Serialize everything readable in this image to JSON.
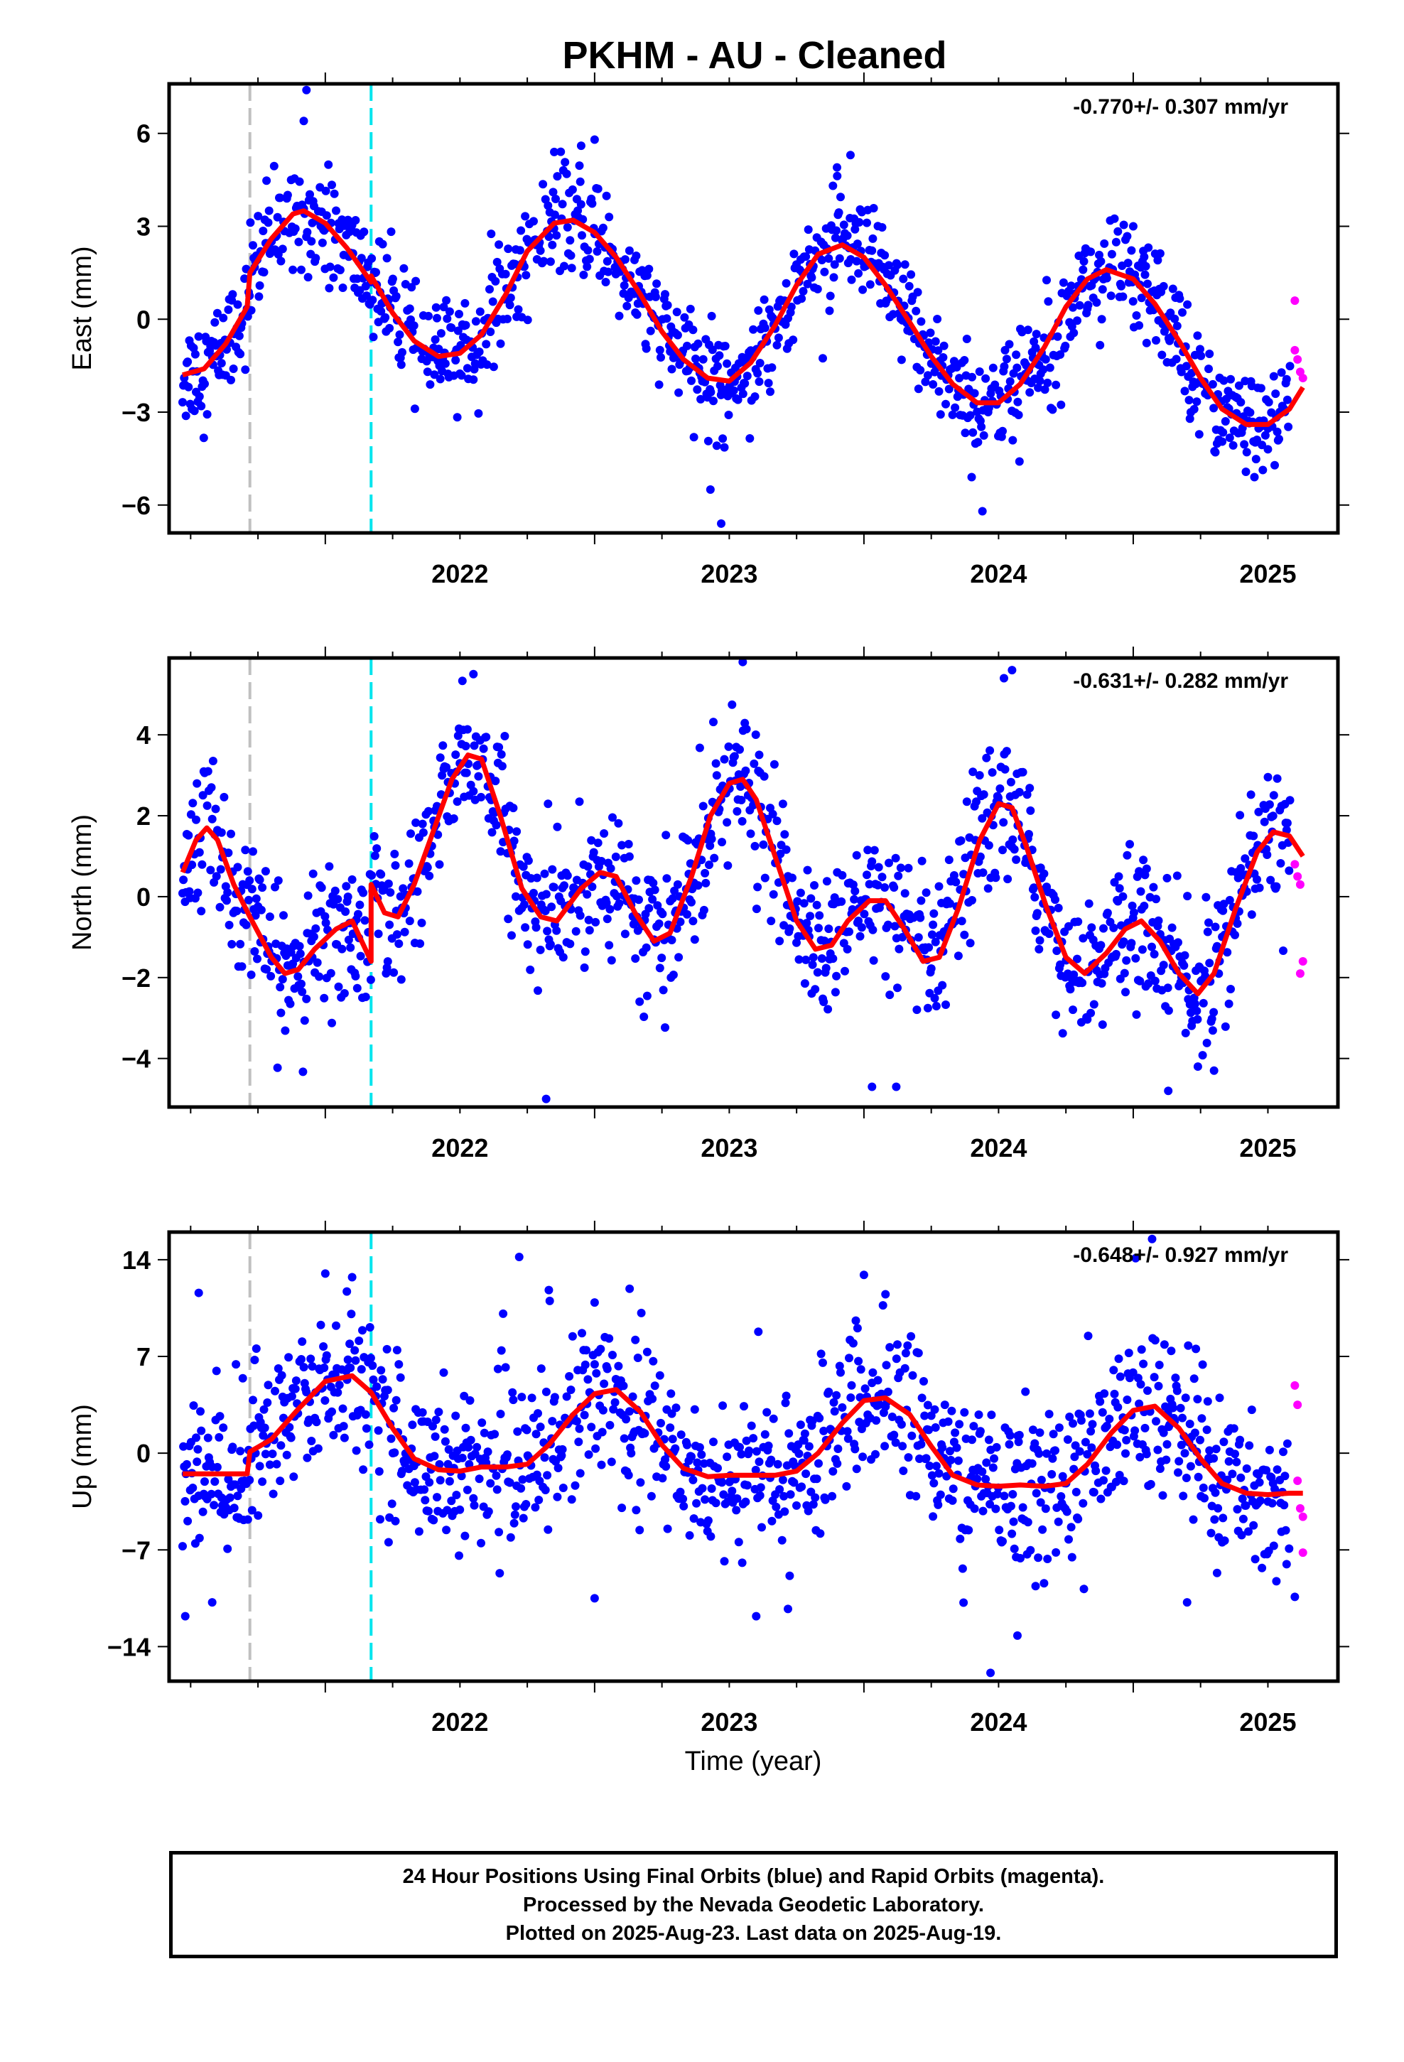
{
  "title": "PKHM  - AU - Cleaned",
  "xlabel": "Time (year)",
  "x_tick_labels": [
    "2022",
    "2023",
    "2024",
    "2025"
  ],
  "footer": {
    "line1": "24 Hour Positions Using Final Orbits (blue) and Rapid Orbits (magenta).",
    "line2": "Processed by the Nevada Geodetic Laboratory.",
    "line3": "Plotted on 2025-Aug-23. Last data on 2025-Aug-19."
  },
  "colors": {
    "final_orbits": "#0000ff",
    "rapid_orbits": "#ff00ff",
    "model_fit": "#ff0000",
    "gray_marker": "#c0c0c0",
    "cyan_marker": "#00e5ee"
  },
  "chart_data": [
    {
      "type": "scatter",
      "component": "east",
      "ylabel": "East (mm)",
      "rate": "-0.770+/- 0.307 mm/yr",
      "xlim": [
        2021.42,
        2025.76
      ],
      "ylim": [
        -6.9,
        7.6
      ],
      "yticks": [
        -6,
        -3,
        0,
        3,
        6
      ],
      "grid": false,
      "vlines": [
        {
          "x": 2021.72,
          "color": "gray",
          "style": "dashed"
        },
        {
          "x": 2022.17,
          "color": "cyan",
          "style": "dashed"
        }
      ],
      "fit": [
        [
          2021.47,
          -1.8
        ],
        [
          2021.55,
          -1.6
        ],
        [
          2021.63,
          -0.8
        ],
        [
          2021.71,
          0.4
        ],
        [
          2021.72,
          1.5
        ],
        [
          2021.8,
          2.6
        ],
        [
          2021.88,
          3.4
        ],
        [
          2021.92,
          3.5
        ],
        [
          2022.0,
          3.1
        ],
        [
          2022.08,
          2.3
        ],
        [
          2022.17,
          1.2
        ],
        [
          2022.17,
          1.4
        ],
        [
          2022.25,
          0.2
        ],
        [
          2022.33,
          -0.7
        ],
        [
          2022.42,
          -1.2
        ],
        [
          2022.5,
          -1.1
        ],
        [
          2022.58,
          -0.5
        ],
        [
          2022.67,
          0.8
        ],
        [
          2022.75,
          2.2
        ],
        [
          2022.85,
          3.1
        ],
        [
          2022.92,
          3.2
        ],
        [
          2023.0,
          2.8
        ],
        [
          2023.08,
          2.0
        ],
        [
          2023.17,
          0.8
        ],
        [
          2023.25,
          -0.4
        ],
        [
          2023.33,
          -1.3
        ],
        [
          2023.42,
          -1.9
        ],
        [
          2023.5,
          -2.0
        ],
        [
          2023.58,
          -1.4
        ],
        [
          2023.67,
          -0.2
        ],
        [
          2023.75,
          1.1
        ],
        [
          2023.83,
          2.1
        ],
        [
          2023.92,
          2.4
        ],
        [
          2024.0,
          2.0
        ],
        [
          2024.08,
          1.1
        ],
        [
          2024.17,
          -0.1
        ],
        [
          2024.25,
          -1.2
        ],
        [
          2024.33,
          -2.1
        ],
        [
          2024.42,
          -2.7
        ],
        [
          2024.5,
          -2.7
        ],
        [
          2024.58,
          -2.1
        ],
        [
          2024.67,
          -0.9
        ],
        [
          2024.75,
          0.4
        ],
        [
          2024.83,
          1.3
        ],
        [
          2024.9,
          1.6
        ],
        [
          2025.0,
          1.3
        ],
        [
          2025.08,
          0.5
        ],
        [
          2025.17,
          -0.7
        ],
        [
          2025.25,
          -1.9
        ],
        [
          2025.33,
          -2.9
        ],
        [
          2025.42,
          -3.4
        ],
        [
          2025.5,
          -3.4
        ],
        [
          2025.58,
          -2.9
        ],
        [
          2025.63,
          -2.2
        ]
      ],
      "rapid_points": [
        [
          2025.6,
          0.6
        ],
        [
          2025.6,
          -1.0
        ],
        [
          2025.61,
          -1.3
        ],
        [
          2025.62,
          -1.7
        ],
        [
          2025.63,
          -1.9
        ]
      ],
      "scatter_sd": 0.85,
      "highlight_points": [
        [
          2021.93,
          7.4
        ],
        [
          2021.92,
          6.4
        ],
        [
          2022.85,
          5.4
        ],
        [
          2022.95,
          5.6
        ],
        [
          2023.0,
          5.8
        ],
        [
          2023.47,
          -6.6
        ],
        [
          2023.43,
          -5.5
        ],
        [
          2023.9,
          4.9
        ],
        [
          2023.95,
          5.3
        ],
        [
          2024.44,
          -6.2
        ],
        [
          2024.4,
          -5.1
        ],
        [
          2025.0,
          3.0
        ],
        [
          2025.45,
          -5.1
        ],
        [
          2025.5,
          -4.2
        ]
      ]
    },
    {
      "type": "scatter",
      "component": "north",
      "ylabel": "North (mm)",
      "rate": "-0.631+/- 0.282 mm/yr",
      "xlim": [
        2021.42,
        2025.76
      ],
      "ylim": [
        -5.2,
        5.9
      ],
      "yticks": [
        -4,
        -2,
        0,
        2,
        4
      ],
      "grid": false,
      "vlines": [
        {
          "x": 2021.72,
          "color": "gray",
          "style": "dashed"
        },
        {
          "x": 2022.17,
          "color": "cyan",
          "style": "dashed"
        }
      ],
      "fit": [
        [
          2021.47,
          0.6
        ],
        [
          2021.52,
          1.4
        ],
        [
          2021.56,
          1.7
        ],
        [
          2021.6,
          1.4
        ],
        [
          2021.66,
          0.3
        ],
        [
          2021.72,
          -0.5
        ],
        [
          2021.8,
          -1.5
        ],
        [
          2021.85,
          -1.9
        ],
        [
          2021.9,
          -1.8
        ],
        [
          2021.96,
          -1.3
        ],
        [
          2022.04,
          -0.8
        ],
        [
          2022.1,
          -0.6
        ],
        [
          2022.17,
          -1.6
        ],
        [
          2022.17,
          0.3
        ],
        [
          2022.22,
          -0.4
        ],
        [
          2022.27,
          -0.5
        ],
        [
          2022.33,
          0.3
        ],
        [
          2022.4,
          1.6
        ],
        [
          2022.47,
          2.9
        ],
        [
          2022.53,
          3.5
        ],
        [
          2022.58,
          3.4
        ],
        [
          2022.65,
          2.0
        ],
        [
          2022.73,
          0.2
        ],
        [
          2022.8,
          -0.5
        ],
        [
          2022.86,
          -0.6
        ],
        [
          2022.95,
          0.2
        ],
        [
          2023.02,
          0.6
        ],
        [
          2023.08,
          0.5
        ],
        [
          2023.15,
          -0.4
        ],
        [
          2023.22,
          -1.1
        ],
        [
          2023.28,
          -0.9
        ],
        [
          2023.36,
          0.5
        ],
        [
          2023.43,
          2.0
        ],
        [
          2023.5,
          2.8
        ],
        [
          2023.55,
          2.9
        ],
        [
          2023.6,
          2.4
        ],
        [
          2023.68,
          0.8
        ],
        [
          2023.75,
          -0.6
        ],
        [
          2023.82,
          -1.3
        ],
        [
          2023.88,
          -1.2
        ],
        [
          2023.94,
          -0.6
        ],
        [
          2024.02,
          -0.1
        ],
        [
          2024.08,
          -0.1
        ],
        [
          2024.15,
          -0.8
        ],
        [
          2024.22,
          -1.6
        ],
        [
          2024.28,
          -1.5
        ],
        [
          2024.35,
          -0.3
        ],
        [
          2024.43,
          1.4
        ],
        [
          2024.5,
          2.3
        ],
        [
          2024.55,
          2.2
        ],
        [
          2024.6,
          1.3
        ],
        [
          2024.68,
          -0.3
        ],
        [
          2024.75,
          -1.5
        ],
        [
          2024.82,
          -1.9
        ],
        [
          2024.9,
          -1.4
        ],
        [
          2024.97,
          -0.8
        ],
        [
          2025.03,
          -0.6
        ],
        [
          2025.1,
          -1.1
        ],
        [
          2025.17,
          -1.9
        ],
        [
          2025.24,
          -2.4
        ],
        [
          2025.3,
          -1.9
        ],
        [
          2025.38,
          -0.3
        ],
        [
          2025.46,
          1.1
        ],
        [
          2025.52,
          1.6
        ],
        [
          2025.58,
          1.5
        ],
        [
          2025.63,
          1.0
        ]
      ],
      "rapid_points": [
        [
          2025.6,
          0.8
        ],
        [
          2025.61,
          0.5
        ],
        [
          2025.62,
          0.3
        ],
        [
          2025.62,
          -1.9
        ],
        [
          2025.63,
          -1.6
        ]
      ],
      "scatter_sd": 0.85,
      "highlight_points": [
        [
          2022.55,
          5.5
        ],
        [
          2022.82,
          -5.0
        ],
        [
          2023.55,
          5.8
        ],
        [
          2024.03,
          -4.7
        ],
        [
          2024.12,
          -4.7
        ],
        [
          2024.52,
          5.4
        ],
        [
          2024.55,
          5.6
        ],
        [
          2025.13,
          -4.8
        ],
        [
          2025.3,
          -4.3
        ],
        [
          2025.24,
          -4.2
        ]
      ]
    },
    {
      "type": "scatter",
      "component": "up",
      "ylabel": "Up (mm)",
      "rate": "-0.648+/- 0.927 mm/yr",
      "xlim": [
        2021.42,
        2025.76
      ],
      "ylim": [
        -16.5,
        16.0
      ],
      "yticks": [
        -14,
        -7,
        0,
        7,
        14
      ],
      "grid": false,
      "vlines": [
        {
          "x": 2021.72,
          "color": "gray",
          "style": "dashed"
        },
        {
          "x": 2022.17,
          "color": "cyan",
          "style": "dashed"
        }
      ],
      "fit": [
        [
          2021.47,
          -1.5
        ],
        [
          2021.55,
          -1.5
        ],
        [
          2021.63,
          -1.5
        ],
        [
          2021.71,
          -1.5
        ],
        [
          2021.72,
          0.1
        ],
        [
          2021.8,
          1.0
        ],
        [
          2021.9,
          3.2
        ],
        [
          2022.0,
          5.2
        ],
        [
          2022.1,
          5.6
        ],
        [
          2022.17,
          4.4
        ],
        [
          2022.25,
          1.8
        ],
        [
          2022.33,
          -0.4
        ],
        [
          2022.42,
          -1.2
        ],
        [
          2022.5,
          -1.3
        ],
        [
          2022.58,
          -1.0
        ],
        [
          2022.67,
          -1.0
        ],
        [
          2022.75,
          -0.8
        ],
        [
          2022.83,
          0.6
        ],
        [
          2022.92,
          2.8
        ],
        [
          2023.0,
          4.3
        ],
        [
          2023.08,
          4.6
        ],
        [
          2023.17,
          3.0
        ],
        [
          2023.25,
          0.6
        ],
        [
          2023.33,
          -1.1
        ],
        [
          2023.42,
          -1.7
        ],
        [
          2023.5,
          -1.6
        ],
        [
          2023.58,
          -1.6
        ],
        [
          2023.67,
          -1.6
        ],
        [
          2023.75,
          -1.3
        ],
        [
          2023.83,
          0.0
        ],
        [
          2023.92,
          2.2
        ],
        [
          2024.0,
          3.8
        ],
        [
          2024.08,
          4.0
        ],
        [
          2024.17,
          2.8
        ],
        [
          2024.25,
          0.5
        ],
        [
          2024.33,
          -1.6
        ],
        [
          2024.42,
          -2.3
        ],
        [
          2024.5,
          -2.4
        ],
        [
          2024.58,
          -2.3
        ],
        [
          2024.67,
          -2.4
        ],
        [
          2024.75,
          -2.2
        ],
        [
          2024.83,
          -0.8
        ],
        [
          2024.92,
          1.5
        ],
        [
          2025.0,
          3.1
        ],
        [
          2025.08,
          3.4
        ],
        [
          2025.17,
          1.8
        ],
        [
          2025.25,
          -0.4
        ],
        [
          2025.33,
          -2.2
        ],
        [
          2025.42,
          -2.9
        ],
        [
          2025.5,
          -3.0
        ],
        [
          2025.58,
          -2.9
        ],
        [
          2025.63,
          -2.9
        ]
      ],
      "rapid_points": [
        [
          2025.6,
          4.9
        ],
        [
          2025.61,
          3.5
        ],
        [
          2025.61,
          -2.0
        ],
        [
          2025.62,
          -4.0
        ],
        [
          2025.63,
          -4.6
        ],
        [
          2025.63,
          -7.2
        ]
      ],
      "scatter_sd": 2.9,
      "highlight_points": [
        [
          2021.48,
          -11.8
        ],
        [
          2021.53,
          11.6
        ],
        [
          2021.58,
          -10.8
        ],
        [
          2022.0,
          13.0
        ],
        [
          2022.08,
          11.7
        ],
        [
          2022.72,
          14.2
        ],
        [
          2022.83,
          11.8
        ],
        [
          2023.0,
          10.9
        ],
        [
          2023.0,
          -10.5
        ],
        [
          2023.13,
          11.9
        ],
        [
          2023.6,
          -11.8
        ],
        [
          2024.0,
          12.9
        ],
        [
          2024.08,
          11.5
        ],
        [
          2024.47,
          -15.9
        ],
        [
          2024.57,
          -13.2
        ],
        [
          2025.07,
          15.5
        ],
        [
          2025.2,
          -10.8
        ],
        [
          2025.6,
          -10.4
        ]
      ]
    }
  ]
}
